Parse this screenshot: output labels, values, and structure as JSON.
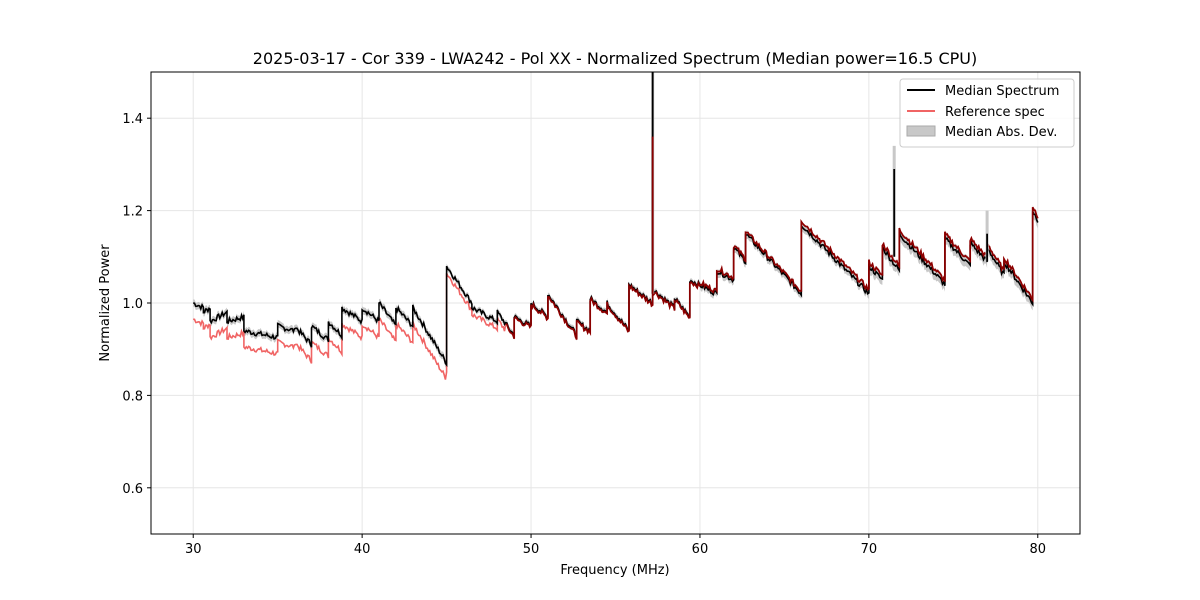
{
  "chart_data": {
    "type": "line",
    "title": "2025-03-17 - Cor 339 - LWA242 - Pol XX - Normalized Spectrum (Median power=16.5 CPU)",
    "xlabel": "Frequency (MHz)",
    "ylabel": "Normalized Power",
    "xlim": [
      27.5,
      82.5
    ],
    "ylim": [
      0.5,
      1.5
    ],
    "xticks": [
      30,
      40,
      50,
      60,
      70,
      80
    ],
    "yticks": [
      0.6,
      0.8,
      1.0,
      1.2,
      1.4
    ],
    "grid": true,
    "legend_position": "top-right",
    "legend": [
      "Median Spectrum",
      "Reference spec",
      "Median Abs. Dev."
    ],
    "colors": {
      "median": "#000000",
      "reference": "#f06464",
      "overlap": "#8b0000",
      "mad": "#c8c8c8"
    },
    "segments": [
      {
        "x0": 30.0,
        "x1": 30.6,
        "y0": 1.0,
        "y1": 0.99
      },
      {
        "x0": 30.6,
        "x1": 31.0,
        "y0": 0.98,
        "y1": 0.99
      },
      {
        "x0": 31.0,
        "x1": 32.0,
        "y0": 0.96,
        "y1": 0.98
      },
      {
        "x0": 32.0,
        "x1": 33.0,
        "y0": 0.96,
        "y1": 0.97
      },
      {
        "x0": 33.0,
        "x1": 35.0,
        "y0": 0.94,
        "y1": 0.925
      },
      {
        "x0": 35.0,
        "x1": 36.0,
        "y0": 0.95,
        "y1": 0.94
      },
      {
        "x0": 36.0,
        "x1": 37.0,
        "y0": 0.95,
        "y1": 0.91
      },
      {
        "x0": 37.0,
        "x1": 38.0,
        "y0": 0.95,
        "y1": 0.92
      },
      {
        "x0": 38.0,
        "x1": 38.8,
        "y0": 0.96,
        "y1": 0.93
      },
      {
        "x0": 38.8,
        "x1": 40.0,
        "y0": 0.99,
        "y1": 0.96
      },
      {
        "x0": 40.0,
        "x1": 41.0,
        "y0": 0.99,
        "y1": 0.96
      },
      {
        "x0": 41.0,
        "x1": 42.0,
        "y0": 1.0,
        "y1": 0.95
      },
      {
        "x0": 42.0,
        "x1": 43.0,
        "y0": 0.99,
        "y1": 0.95
      },
      {
        "x0": 43.0,
        "x1": 45.0,
        "y0": 0.99,
        "y1": 0.87
      },
      {
        "x0": 45.0,
        "x1": 46.5,
        "y0": 1.08,
        "y1": 1.0
      },
      {
        "x0": 46.5,
        "x1": 48.0,
        "y0": 0.99,
        "y1": 0.96
      },
      {
        "x0": 48.0,
        "x1": 49.0,
        "y0": 0.98,
        "y1": 0.93
      },
      {
        "x0": 49.0,
        "x1": 50.0,
        "y0": 0.97,
        "y1": 0.95
      },
      {
        "x0": 50.0,
        "x1": 51.0,
        "y0": 1.0,
        "y1": 0.97
      },
      {
        "x0": 51.0,
        "x1": 52.7,
        "y0": 1.02,
        "y1": 0.93
      },
      {
        "x0": 52.7,
        "x1": 53.5,
        "y0": 0.96,
        "y1": 0.94
      },
      {
        "x0": 53.5,
        "x1": 54.5,
        "y0": 1.01,
        "y1": 0.98
      },
      {
        "x0": 54.5,
        "x1": 55.8,
        "y0": 1.0,
        "y1": 0.94
      },
      {
        "x0": 55.8,
        "x1": 57.2,
        "y0": 1.04,
        "y1": 1.0
      },
      {
        "x0": 57.2,
        "x1": 58.5,
        "y0": 1.03,
        "y1": 0.99
      },
      {
        "x0": 58.5,
        "x1": 59.4,
        "y0": 1.01,
        "y1": 0.97
      },
      {
        "x0": 59.4,
        "x1": 61.0,
        "y0": 1.05,
        "y1": 1.02
      },
      {
        "x0": 61.0,
        "x1": 62.0,
        "y0": 1.07,
        "y1": 1.05
      },
      {
        "x0": 62.0,
        "x1": 62.7,
        "y0": 1.12,
        "y1": 1.09
      },
      {
        "x0": 62.7,
        "x1": 66.0,
        "y0": 1.15,
        "y1": 1.02
      },
      {
        "x0": 66.0,
        "x1": 70.0,
        "y0": 1.17,
        "y1": 1.02
      },
      {
        "x0": 70.0,
        "x1": 70.8,
        "y0": 1.08,
        "y1": 1.05
      },
      {
        "x0": 70.8,
        "x1": 71.8,
        "y0": 1.12,
        "y1": 1.07
      },
      {
        "x0": 71.8,
        "x1": 74.5,
        "y0": 1.15,
        "y1": 1.04
      },
      {
        "x0": 74.5,
        "x1": 76.0,
        "y0": 1.14,
        "y1": 1.08
      },
      {
        "x0": 76.0,
        "x1": 77.0,
        "y0": 1.13,
        "y1": 1.09
      },
      {
        "x0": 77.0,
        "x1": 78.0,
        "y0": 1.12,
        "y1": 1.06
      },
      {
        "x0": 78.0,
        "x1": 79.7,
        "y0": 1.09,
        "y1": 1.0
      },
      {
        "x0": 79.7,
        "x1": 80.0,
        "y0": 1.2,
        "y1": 1.18
      }
    ],
    "spikes": [
      {
        "x": 57.2,
        "y0": 1.02,
        "y1": 1.5
      },
      {
        "x": 71.5,
        "y0": 1.1,
        "y1": 1.29
      },
      {
        "x": 77.0,
        "y0": 1.09,
        "y1": 1.15
      }
    ]
  }
}
